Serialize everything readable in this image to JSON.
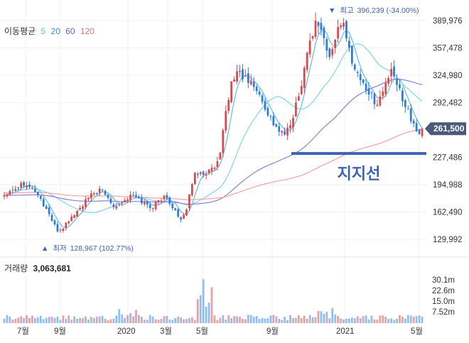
{
  "legend": {
    "title": "이동평균",
    "periods": [
      {
        "label": "5",
        "color": "#5bc0de"
      },
      {
        "label": "20",
        "color": "#3b8fd0"
      },
      {
        "label": "60",
        "color": "#6a5acd"
      },
      {
        "label": "120",
        "color": "#e57373"
      }
    ]
  },
  "annotations": {
    "high": {
      "marker": "▼",
      "label": "최고",
      "value": "396,239 (-34.00%)"
    },
    "low": {
      "marker": "▲",
      "label": "최저",
      "value": "128,967 (102.77%)"
    },
    "support": {
      "label": "지지선",
      "level": 232000,
      "color": "#3d62b3"
    },
    "current_price": {
      "label": "261,500",
      "value": 261500
    }
  },
  "volume": {
    "title": "거래량",
    "value": "3,063,681",
    "axis_labels": [
      "30.1m",
      "22.6m",
      "15.0m",
      "7.52m"
    ]
  },
  "chart_data": {
    "type": "candlestick",
    "y_ticks": [
      "389,976",
      "357,478",
      "324,980",
      "292,482",
      "227,486",
      "194,988",
      "162,490",
      "129,992"
    ],
    "y_tick_values": [
      389976,
      357478,
      324980,
      292482,
      227486,
      194988,
      162490,
      129992
    ],
    "x_tick_labels": [
      "7월",
      "9월",
      "2020",
      "3월",
      "5월",
      "9월",
      "2021",
      "5월"
    ],
    "colors": {
      "up": "#e0474c",
      "down": "#2f7bd8"
    },
    "close_series": [
      183000,
      188000,
      190000,
      193000,
      196000,
      198000,
      192000,
      188000,
      180000,
      170000,
      163000,
      150000,
      140000,
      142000,
      148000,
      155000,
      160000,
      165000,
      172000,
      178000,
      183000,
      187000,
      188000,
      183000,
      176000,
      170000,
      172000,
      175000,
      179000,
      182000,
      180000,
      176000,
      173000,
      168000,
      170000,
      175000,
      180000,
      178000,
      172000,
      163000,
      150000,
      158000,
      180000,
      205000,
      210000,
      208000,
      210000,
      212000,
      215000,
      225000,
      270000,
      300000,
      320000,
      330000,
      325000,
      320000,
      315000,
      312000,
      300000,
      290000,
      280000,
      270000,
      262000,
      256000,
      255000,
      265000,
      285000,
      300000,
      330000,
      355000,
      375000,
      390000,
      382000,
      360000,
      345000,
      360000,
      390000,
      385000,
      362000,
      345000,
      330000,
      320000,
      312000,
      303000,
      296000,
      292000,
      305000,
      320000,
      328000,
      318000,
      305000,
      293000,
      282000,
      264000,
      255000,
      261500
    ]
  }
}
